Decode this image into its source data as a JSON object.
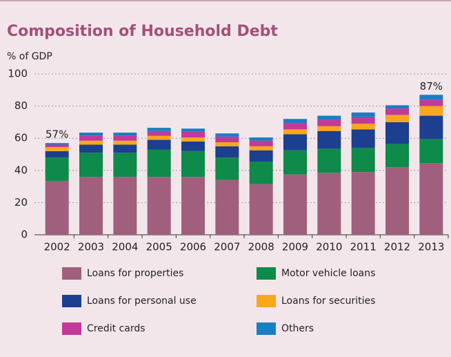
{
  "chart_data": {
    "type": "stacked-bar",
    "title": "Composition of Household Debt",
    "y_label": "% of GDP",
    "categories": [
      "2002",
      "2003",
      "2004",
      "2005",
      "2006",
      "2007",
      "2008",
      "2009",
      "2010",
      "2011",
      "2012",
      "2013"
    ],
    "series": [
      {
        "name": "Loans for properties",
        "color": "#a0607d",
        "values": [
          33.5,
          36,
          36,
          36,
          36,
          34,
          31.5,
          37.5,
          38.5,
          39,
          42,
          44.5
        ]
      },
      {
        "name": "Motor vehicle loans",
        "color": "#0e8a4a",
        "values": [
          14.5,
          15,
          15,
          17,
          16,
          14,
          14,
          15,
          15,
          15,
          14.5,
          15
        ]
      },
      {
        "name": "Loans for personal use",
        "color": "#1c3f8f",
        "values": [
          4,
          5,
          5,
          6,
          6,
          7,
          7,
          10,
          11,
          11.5,
          13.5,
          14.5
        ]
      },
      {
        "name": "Loans for securities",
        "color": "#f7a81b",
        "values": [
          2.5,
          2.5,
          2.5,
          2.5,
          2.5,
          2.5,
          2.5,
          3,
          3,
          3.5,
          4.5,
          6
        ]
      },
      {
        "name": "Credit cards",
        "color": "#c2399a",
        "values": [
          1.5,
          3,
          3,
          3,
          3.5,
          3.5,
          3.5,
          4,
          4,
          4,
          4,
          4
        ]
      },
      {
        "name": "Others",
        "color": "#1a7ec2",
        "values": [
          1,
          2,
          2,
          2,
          2,
          2,
          2,
          2.5,
          2.5,
          3,
          2,
          3
        ]
      }
    ],
    "annotations": [
      {
        "text": "57%",
        "category": "2002"
      },
      {
        "text": "87%",
        "category": "2013"
      }
    ],
    "ylim": [
      0,
      100
    ],
    "yticks": [
      0,
      20,
      40,
      60,
      80,
      100
    ],
    "grid": true
  }
}
